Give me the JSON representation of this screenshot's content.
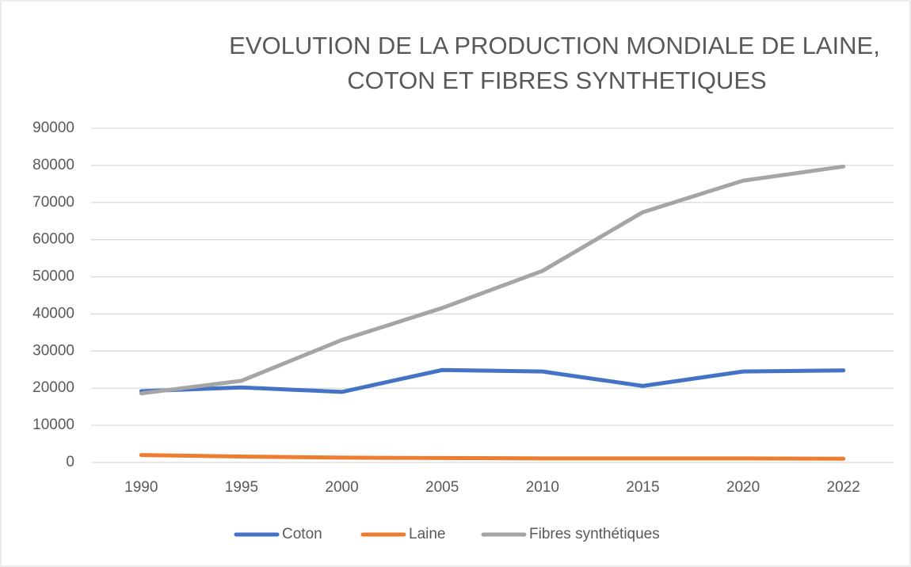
{
  "chart_data": {
    "type": "line",
    "title": [
      "EVOLUTION DE LA PRODUCTION MONDIALE DE LAINE,",
      "COTON ET FIBRES SYNTHETIQUES"
    ],
    "categories": [
      "1990",
      "1995",
      "2000",
      "2005",
      "2010",
      "2015",
      "2020",
      "2022"
    ],
    "series": [
      {
        "name": "Coton",
        "color": "#4472c4",
        "values": [
          19200,
          20200,
          19000,
          24900,
          24500,
          20600,
          24500,
          24800
        ]
      },
      {
        "name": "Laine",
        "color": "#ed7d31",
        "values": [
          2000,
          1600,
          1300,
          1200,
          1100,
          1100,
          1100,
          1000
        ]
      },
      {
        "name": "Fibres synthétiques",
        "color": "#a5a5a5",
        "values": [
          18600,
          22000,
          33000,
          41600,
          51600,
          67400,
          75900,
          79700
        ]
      }
    ],
    "ylim": [
      0,
      90000
    ],
    "yticks": [
      0,
      10000,
      20000,
      30000,
      40000,
      50000,
      60000,
      70000,
      80000,
      90000
    ],
    "grid": true,
    "legend": "bottom"
  }
}
